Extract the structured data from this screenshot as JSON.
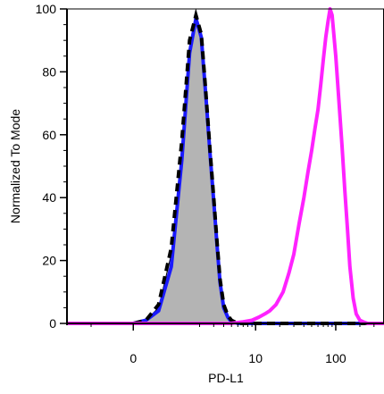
{
  "chart_data": {
    "type": "area",
    "title": "",
    "xlabel": "PD-L1",
    "ylabel": "Normalized To Mode",
    "x_scale": "biexponential",
    "xlim": [
      -2,
      400
    ],
    "ylim": [
      0,
      100
    ],
    "x_ticks": [
      {
        "value": 0,
        "label": "0"
      },
      {
        "value": 10,
        "label": "10"
      },
      {
        "value": 100,
        "label": "100"
      }
    ],
    "y_ticks": [
      {
        "value": 0,
        "label": "0"
      },
      {
        "value": 20,
        "label": "20"
      },
      {
        "value": 40,
        "label": "40"
      },
      {
        "value": 60,
        "label": "60"
      },
      {
        "value": 80,
        "label": "80"
      },
      {
        "value": 100,
        "label": "100"
      }
    ],
    "grid": false,
    "legend": null,
    "series": [
      {
        "style": "gray-filled",
        "color": "#000000",
        "fill": "#b4b4b4",
        "x": [
          -2,
          0,
          0.3,
          0.6,
          0.9,
          1.2,
          1.5,
          1.8,
          2.1,
          2.4,
          2.7,
          3.0,
          3.3,
          3.6,
          4.0,
          4.5,
          5.0,
          6.0,
          400
        ],
        "y": [
          0,
          0,
          1,
          5,
          22,
          55,
          88,
          97,
          90,
          70,
          52,
          38,
          24,
          12,
          5,
          2,
          0.5,
          0,
          0
        ]
      },
      {
        "style": "blue-solid",
        "color": "#1a1aff",
        "x": [
          -2,
          0,
          0.3,
          0.6,
          0.9,
          1.2,
          1.5,
          1.8,
          2.1,
          2.4,
          2.7,
          3.0,
          3.3,
          3.6,
          4.0,
          4.5,
          5.0,
          6.0,
          400
        ],
        "y": [
          0,
          0,
          1,
          4,
          18,
          52,
          86,
          97,
          91,
          72,
          54,
          39,
          25,
          13,
          5,
          2,
          0.5,
          0,
          0
        ]
      },
      {
        "style": "black-dashed",
        "color": "#000000",
        "x": [
          -2,
          0,
          0.3,
          0.6,
          0.9,
          1.2,
          1.5,
          1.8,
          2.1,
          2.4,
          2.7,
          3.0,
          3.3,
          3.6,
          4.0,
          4.5,
          5.0,
          6.0,
          400
        ],
        "y": [
          0,
          0,
          1,
          6,
          24,
          58,
          90,
          98,
          92,
          73,
          55,
          40,
          26,
          14,
          6,
          2.5,
          1,
          0,
          0
        ]
      },
      {
        "style": "magenta-solid",
        "color": "#ff22ff",
        "x": [
          -2,
          5,
          7,
          9,
          11,
          13,
          15,
          18,
          22,
          26,
          30,
          35,
          40,
          45,
          50,
          55,
          60,
          65,
          70,
          75,
          80,
          85,
          90,
          100,
          110,
          120,
          130,
          140,
          150,
          165,
          180,
          200,
          220,
          250,
          300,
          400
        ],
        "y": [
          0,
          0,
          0.5,
          1,
          2,
          3,
          4,
          6,
          10,
          16,
          22,
          32,
          40,
          48,
          55,
          62,
          68,
          76,
          84,
          91,
          96,
          100,
          98,
          85,
          70,
          56,
          42,
          30,
          18,
          8,
          3,
          1,
          0.5,
          0,
          0,
          0
        ]
      }
    ]
  }
}
